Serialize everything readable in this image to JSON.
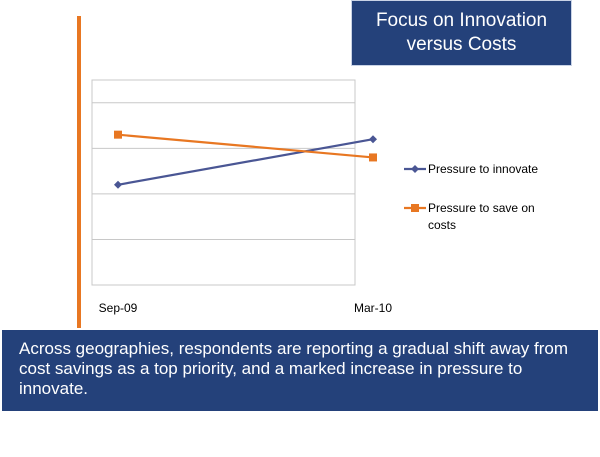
{
  "title": {
    "line1": "Focus on Innovation",
    "line2": "versus Costs"
  },
  "caption": "Across geographies, respondents are reporting a gradual shift away from cost savings as a top priority, and a marked increase in pressure to innovate.",
  "colors": {
    "navy": "#24417a",
    "orange": "#e87722",
    "series_blue": "#4a5694",
    "series_orange": "#e87722"
  },
  "chart_data": {
    "type": "line",
    "categories": [
      "Sep-09",
      "Mar-10"
    ],
    "series": [
      {
        "name": "Pressure to innovate",
        "values": [
          2.2,
          3.2
        ],
        "color": "#4a5694",
        "marker": "diamond"
      },
      {
        "name": "Pressure to save on costs",
        "values": [
          3.3,
          2.8
        ],
        "color": "#e87722",
        "marker": "square"
      }
    ],
    "ylim": [
      0,
      4.5
    ],
    "grid": true,
    "legend": "right",
    "xlabel": "",
    "ylabel": ""
  }
}
